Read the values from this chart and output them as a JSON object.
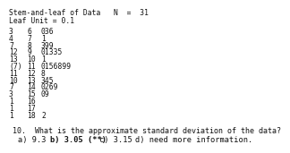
{
  "title_line1": "Stem-and-leaf of Data   N  =  31",
  "title_line2": "Leaf Unit = 0.1",
  "rows": [
    [
      "3",
      "6",
      "036"
    ],
    [
      "4",
      "7",
      "1"
    ],
    [
      "7",
      "8",
      "399"
    ],
    [
      "12",
      "9",
      "01335"
    ],
    [
      "13",
      "10",
      "1"
    ],
    [
      "(7)",
      "11",
      "0156899"
    ],
    [
      "11",
      "12",
      "8"
    ],
    [
      "10",
      "13",
      "345"
    ],
    [
      "7",
      "14",
      "0269"
    ],
    [
      "3",
      "15",
      "09"
    ],
    [
      "1",
      "16",
      ""
    ],
    [
      "1",
      "17",
      ""
    ],
    [
      "1",
      "18",
      "2"
    ]
  ],
  "question": "10.  What is the approximate standard deviation of the data?",
  "answer_a": "a) 9.3",
  "answer_b": "b) 3.05 (**)",
  "answer_c": "c) 3.15",
  "answer_d": "d) need more information.",
  "bg_color": "#ffffff",
  "text_color": "#111111",
  "font_size": 5.8,
  "title_font_size": 5.8,
  "question_font_size": 6.0,
  "answer_font_size": 6.2
}
